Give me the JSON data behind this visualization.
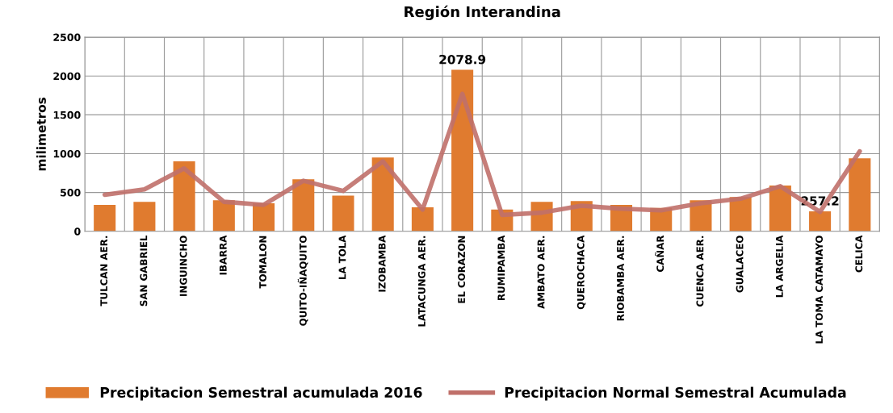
{
  "chart_data": {
    "type": "bar",
    "title": "Región Interandina",
    "ylabel": "milimetros",
    "categories": [
      "TULCAN AER.",
      "SAN GABRIEL",
      "INGUINCHO",
      "IBARRA",
      "TOMALON",
      "QUITO-IÑAQUITO",
      "LA TOLA",
      "IZOBAMBA",
      "LATACUNGA AER.",
      "EL CORAZON",
      "RUMIPAMBA",
      "AMBATO AER.",
      "QUEROCHACA",
      "RIOBAMBA AER.",
      "CAÑAR",
      "CUENCA AER.",
      "GUALACEO",
      "LA ARGELIA",
      "LA TOMA CATAMAYO",
      "CELICA"
    ],
    "series": [
      {
        "name": "Precipitacion Semestral acumulada 2016",
        "color": "#e07b2f",
        "values": [
          340,
          380,
          900,
          400,
          360,
          670,
          460,
          950,
          310,
          2078.9,
          280,
          380,
          390,
          340,
          300,
          400,
          440,
          590,
          257.2,
          940
        ],
        "value_labels": [
          null,
          null,
          null,
          null,
          null,
          null,
          null,
          null,
          null,
          "2078.9",
          null,
          null,
          null,
          null,
          null,
          null,
          null,
          null,
          "257.2",
          null
        ]
      },
      {
        "name": "Precipitacion Normal Semestral Acumulada",
        "type": "line",
        "color": "#c0706a",
        "values": [
          470,
          540,
          810,
          380,
          340,
          650,
          520,
          900,
          280,
          1770,
          210,
          240,
          330,
          290,
          270,
          360,
          420,
          580,
          250,
          1030
        ]
      }
    ],
    "ylim": [
      0,
      2500
    ],
    "yticks": [
      0,
      500,
      1000,
      1500,
      2000,
      2500
    ],
    "grid": true,
    "legend": "bottom",
    "line_style": "solid",
    "marker": "none"
  }
}
